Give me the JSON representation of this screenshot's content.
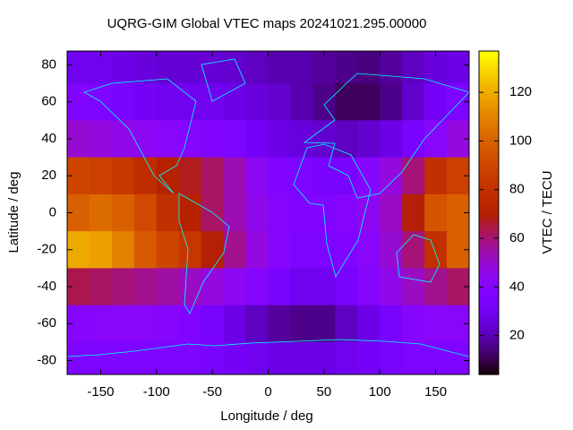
{
  "chart_data": {
    "type": "heatmap",
    "title": "UQRG-GIM Global VTEC maps 20241021.295.00000",
    "x_label": "Longitude / deg",
    "y_label": "Latitude / deg",
    "colorbar_label": "VTEC / TECU",
    "x": [
      -170,
      -150,
      -130,
      -110,
      -90,
      -70,
      -50,
      -30,
      -10,
      10,
      30,
      50,
      70,
      90,
      110,
      130,
      150,
      170
    ],
    "y": [
      80,
      60,
      40,
      20,
      0,
      -20,
      -40,
      -60,
      -80
    ],
    "z": [
      [
        30,
        30,
        28,
        26,
        25,
        25,
        25,
        24,
        22,
        20,
        20,
        18,
        16,
        15,
        18,
        22,
        26,
        28
      ],
      [
        38,
        36,
        34,
        32,
        30,
        30,
        30,
        28,
        26,
        24,
        20,
        16,
        12,
        12,
        16,
        24,
        32,
        36
      ],
      [
        50,
        48,
        46,
        44,
        42,
        40,
        38,
        36,
        32,
        28,
        26,
        24,
        22,
        24,
        28,
        34,
        42,
        48
      ],
      [
        90,
        88,
        84,
        78,
        72,
        68,
        62,
        54,
        44,
        38,
        36,
        34,
        34,
        40,
        48,
        60,
        80,
        88
      ],
      [
        100,
        104,
        100,
        92,
        80,
        72,
        62,
        54,
        46,
        40,
        38,
        38,
        40,
        44,
        52,
        70,
        96,
        100
      ],
      [
        120,
        118,
        110,
        98,
        90,
        84,
        70,
        58,
        48,
        40,
        36,
        36,
        38,
        42,
        50,
        60,
        80,
        100
      ],
      [
        64,
        62,
        60,
        58,
        56,
        52,
        48,
        44,
        40,
        34,
        30,
        30,
        34,
        40,
        46,
        52,
        58,
        62
      ],
      [
        40,
        42,
        42,
        42,
        40,
        38,
        34,
        28,
        22,
        18,
        16,
        16,
        22,
        28,
        34,
        40,
        42,
        42
      ],
      [
        36,
        36,
        36,
        36,
        36,
        36,
        34,
        32,
        30,
        28,
        28,
        28,
        30,
        32,
        34,
        36,
        36,
        36
      ]
    ],
    "xlim": [
      -180,
      180
    ],
    "ylim": [
      -87.5,
      87.5
    ],
    "zlim": [
      4,
      137
    ],
    "xticks": [
      -150,
      -100,
      -50,
      0,
      50,
      100,
      150
    ],
    "yticks": [
      -80,
      -60,
      -40,
      -20,
      0,
      20,
      40,
      60,
      80
    ],
    "zticks": [
      20,
      40,
      60,
      80,
      100,
      120
    ],
    "colormap": "gnuplot",
    "coastline_color": "#00ffff"
  }
}
